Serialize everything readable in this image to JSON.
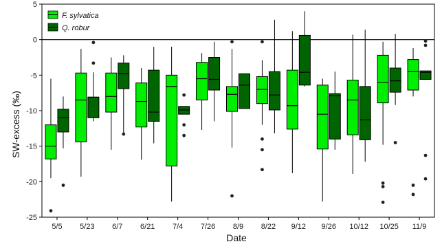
{
  "chart_data": {
    "type": "boxplot",
    "title": "",
    "xlabel": "Date",
    "ylabel": "SW-excess (‰)",
    "ylim": [
      -25,
      5
    ],
    "yticks": [
      -25,
      -20,
      -15,
      -10,
      -5,
      0,
      5
    ],
    "reference_line": 0,
    "legend_position": "top-left",
    "categories": [
      "5/5",
      "5/23",
      "6/7",
      "6/21",
      "7/4",
      "7/26",
      "8/9",
      "8/22",
      "9/12",
      "9/26",
      "10/12",
      "10/25",
      "11/9"
    ],
    "series": [
      {
        "name": "F. sylvatica",
        "color": "#00ee00",
        "boxes": [
          {
            "whislo": -19.5,
            "q1": -16.8,
            "med": -15.0,
            "q3": -12.0,
            "whishi": -5.5,
            "fliers": [
              -24.1
            ]
          },
          {
            "whislo": -19.3,
            "q1": -14.4,
            "med": -8.5,
            "q3": -4.7,
            "whishi": -1.3,
            "fliers": []
          },
          {
            "whislo": -15.5,
            "q1": -10.2,
            "med": -8.0,
            "q3": -4.7,
            "whishi": -2.5,
            "fliers": []
          },
          {
            "whislo": -16.9,
            "q1": -12.3,
            "med": -8.7,
            "q3": -6.1,
            "whishi": -4.0,
            "fliers": []
          },
          {
            "whislo": -22.8,
            "q1": -17.8,
            "med": -6.6,
            "q3": -5.0,
            "whishi": -1.0,
            "fliers": []
          },
          {
            "whislo": -12.7,
            "q1": -8.5,
            "med": -5.5,
            "q3": -3.2,
            "whishi": -1.9,
            "fliers": []
          },
          {
            "whislo": -15.2,
            "q1": -10.1,
            "med": -7.7,
            "q3": -6.6,
            "whishi": -1.3,
            "fliers": [
              -0.3,
              -22.0
            ]
          },
          {
            "whislo": -12.0,
            "q1": -9.0,
            "med": -7.0,
            "q3": -5.2,
            "whishi": -2.9,
            "fliers": [
              -0.3,
              -14.0,
              -15.5,
              -18.3
            ]
          },
          {
            "whislo": -18.8,
            "q1": -12.6,
            "med": -9.3,
            "q3": -4.3,
            "whishi": 1.2,
            "fliers": []
          },
          {
            "whislo": -22.8,
            "q1": -15.4,
            "med": -10.5,
            "q3": -6.4,
            "whishi": -5.5,
            "fliers": []
          },
          {
            "whislo": -18.9,
            "q1": -13.4,
            "med": -8.5,
            "q3": -5.7,
            "whishi": 0.7,
            "fliers": []
          },
          {
            "whislo": -14.8,
            "q1": -8.9,
            "med": -6.0,
            "q3": -2.2,
            "whishi": -0.3,
            "fliers": [
              -20.2,
              -20.7,
              -22.9
            ]
          },
          {
            "whislo": -8.0,
            "q1": -7.1,
            "med": -4.5,
            "q3": -2.8,
            "whishi": -1.2,
            "fliers": [
              -20.5,
              -21.8
            ]
          }
        ]
      },
      {
        "name": "Q. robur",
        "color": "#006400",
        "boxes": [
          {
            "whislo": -15.3,
            "q1": -13.0,
            "med": -11.0,
            "q3": -9.8,
            "whishi": -8.0,
            "fliers": [
              -20.5
            ]
          },
          {
            "whislo": -11.5,
            "q1": -11.0,
            "med": -8.1,
            "q3": -8.1,
            "whishi": -4.6,
            "fliers": [
              -0.4,
              -3.3
            ]
          },
          {
            "whislo": -13.3,
            "q1": -6.9,
            "med": -4.8,
            "q3": -3.3,
            "whishi": -2.2,
            "fliers": [
              -13.3
            ]
          },
          {
            "whislo": -14.6,
            "q1": -11.5,
            "med": -10.2,
            "q3": -4.3,
            "whishi": -1.0,
            "fliers": []
          },
          {
            "whislo": -10.5,
            "q1": -10.5,
            "med": -9.9,
            "q3": -9.4,
            "whishi": -9.4,
            "fliers": [
              -7.8,
              -12.0,
              -13.5
            ]
          },
          {
            "whislo": -11.5,
            "q1": -7.1,
            "med": -5.6,
            "q3": -2.5,
            "whishi": -0.3,
            "fliers": []
          },
          {
            "whislo": -9.7,
            "q1": -9.7,
            "med": -6.4,
            "q3": -4.8,
            "whishi": -4.8,
            "fliers": []
          },
          {
            "whislo": -13.2,
            "q1": -9.9,
            "med": -7.8,
            "q3": -4.5,
            "whishi": 2.8,
            "fliers": []
          },
          {
            "whislo": -6.6,
            "q1": -6.4,
            "med": -4.6,
            "q3": 0.6,
            "whishi": 4.0,
            "fliers": []
          },
          {
            "whislo": -15.5,
            "q1": -14.0,
            "med": -7.9,
            "q3": -7.6,
            "whishi": -4.5,
            "fliers": []
          },
          {
            "whislo": -17.2,
            "q1": -14.1,
            "med": -11.3,
            "q3": -6.6,
            "whishi": 1.4,
            "fliers": []
          },
          {
            "whislo": -9.2,
            "q1": -7.4,
            "med": -5.8,
            "q3": -4.0,
            "whishi": 0.8,
            "fliers": [
              -14.5
            ]
          },
          {
            "whislo": -5.6,
            "q1": -5.6,
            "med": -4.6,
            "q3": -4.4,
            "whishi": -4.4,
            "fliers": [
              -0.2,
              -0.8,
              -16.3,
              -19.6
            ]
          }
        ]
      }
    ]
  }
}
